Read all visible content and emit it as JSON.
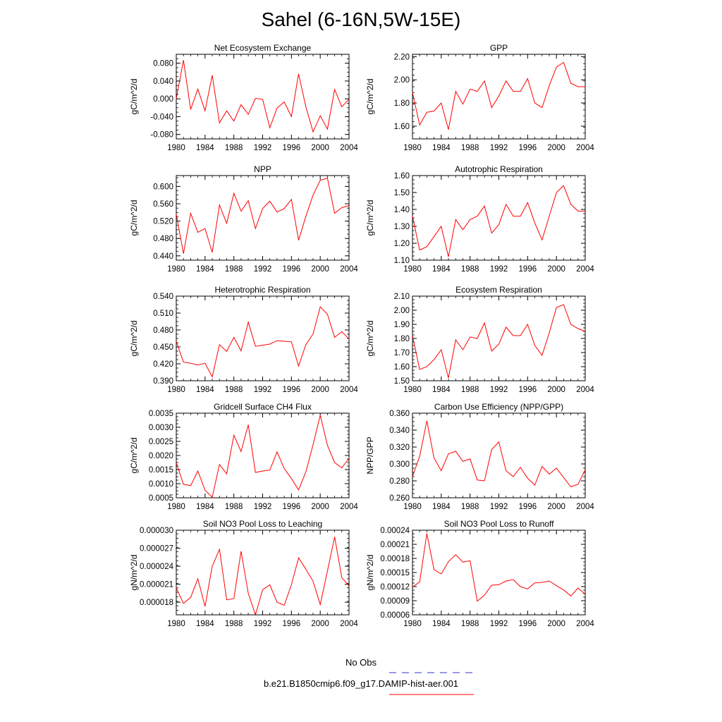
{
  "title": "Sahel (6-16N,5W-15E)",
  "legend": {
    "items": [
      {
        "label": "No Obs",
        "color": "#3333cc",
        "style": "dashed"
      },
      {
        "label": "b.e21.B1850cmip6.f09_g17.DAMIP-hist-aer.001",
        "color": "#ff0000",
        "style": "solid"
      }
    ]
  },
  "chart_data": [
    {
      "type": "line",
      "title": "Net Ecosystem Exchange",
      "ylabel": "gC/m^2/d",
      "xlim": [
        1980,
        2004
      ],
      "xticks": [
        "1980",
        "1984",
        "1988",
        "1992",
        "1996",
        "2000",
        "2004"
      ],
      "ylim": [
        -0.09,
        0.1
      ],
      "yticks": [
        "0.080",
        "0.040",
        "0.000",
        "-0.040",
        "-0.080"
      ],
      "yticks_values": [
        0.08,
        0.04,
        0.0,
        -0.04,
        -0.08
      ],
      "color": "#ff0000",
      "x": [
        1980,
        1981,
        1982,
        1983,
        1984,
        1985,
        1986,
        1987,
        1988,
        1989,
        1990,
        1991,
        1992,
        1993,
        1994,
        1995,
        1996,
        1997,
        1998,
        1999,
        2000,
        2001,
        2002,
        2003,
        2004
      ],
      "values": [
        0.0,
        0.087,
        -0.024,
        0.022,
        -0.027,
        0.053,
        -0.054,
        -0.027,
        -0.05,
        -0.013,
        -0.035,
        0.001,
        -0.001,
        -0.065,
        -0.021,
        -0.007,
        -0.04,
        0.056,
        -0.018,
        -0.074,
        -0.038,
        -0.068,
        0.021,
        -0.018,
        -0.001
      ]
    },
    {
      "type": "line",
      "title": "GPP",
      "ylabel": "gC/m^2/d",
      "xlim": [
        1980,
        2004
      ],
      "xticks": [
        "1980",
        "1984",
        "1988",
        "1992",
        "1996",
        "2000",
        "2004"
      ],
      "ylim": [
        1.49,
        2.22
      ],
      "yticks": [
        "2.20",
        "2.00",
        "1.80",
        "1.60"
      ],
      "yticks_values": [
        2.2,
        2.0,
        1.8,
        1.6
      ],
      "color": "#ff0000",
      "x": [
        1980,
        1981,
        1982,
        1983,
        1984,
        1985,
        1986,
        1987,
        1988,
        1989,
        1990,
        1991,
        1992,
        1993,
        1994,
        1995,
        1996,
        1997,
        1998,
        1999,
        2000,
        2001,
        2002,
        2003,
        2004
      ],
      "values": [
        1.89,
        1.61,
        1.72,
        1.73,
        1.8,
        1.57,
        1.9,
        1.79,
        1.92,
        1.9,
        1.99,
        1.76,
        1.86,
        1.99,
        1.9,
        1.9,
        2.01,
        1.8,
        1.76,
        1.95,
        2.11,
        2.15,
        1.97,
        1.94,
        1.94
      ]
    },
    {
      "type": "line",
      "title": "NPP",
      "ylabel": "gC/m^2/d",
      "xlim": [
        1980,
        2004
      ],
      "xticks": [
        "1980",
        "1984",
        "1988",
        "1992",
        "1996",
        "2000",
        "2004"
      ],
      "ylim": [
        0.43,
        0.625
      ],
      "yticks": [
        "0.600",
        "0.560",
        "0.520",
        "0.480",
        "0.440"
      ],
      "yticks_values": [
        0.6,
        0.56,
        0.52,
        0.48,
        0.44
      ],
      "color": "#ff0000",
      "x": [
        1980,
        1981,
        1982,
        1983,
        1984,
        1985,
        1986,
        1987,
        1988,
        1989,
        1990,
        1991,
        1992,
        1993,
        1994,
        1995,
        1996,
        1997,
        1998,
        1999,
        2000,
        2001,
        2002,
        2003,
        2004
      ],
      "values": [
        0.536,
        0.445,
        0.538,
        0.494,
        0.503,
        0.448,
        0.557,
        0.515,
        0.584,
        0.543,
        0.567,
        0.503,
        0.549,
        0.566,
        0.541,
        0.549,
        0.57,
        0.476,
        0.531,
        0.58,
        0.614,
        0.619,
        0.538,
        0.551,
        0.556
      ]
    },
    {
      "type": "line",
      "title": "Autotrophic Respiration",
      "ylabel": "gC/m^2/d",
      "xlim": [
        1980,
        2004
      ],
      "xticks": [
        "1980",
        "1984",
        "1988",
        "1992",
        "1996",
        "2000",
        "2004"
      ],
      "ylim": [
        1.1,
        1.6
      ],
      "yticks": [
        "1.60",
        "1.50",
        "1.40",
        "1.30",
        "1.20",
        "1.10"
      ],
      "yticks_values": [
        1.6,
        1.5,
        1.4,
        1.3,
        1.2,
        1.1
      ],
      "color": "#ff0000",
      "x": [
        1980,
        1981,
        1982,
        1983,
        1984,
        1985,
        1986,
        1987,
        1988,
        1989,
        1990,
        1991,
        1992,
        1993,
        1994,
        1995,
        1996,
        1997,
        1998,
        1999,
        2000,
        2001,
        2002,
        2003,
        2004
      ],
      "values": [
        1.36,
        1.16,
        1.18,
        1.24,
        1.3,
        1.12,
        1.34,
        1.28,
        1.34,
        1.36,
        1.42,
        1.26,
        1.31,
        1.43,
        1.36,
        1.36,
        1.44,
        1.32,
        1.22,
        1.36,
        1.5,
        1.54,
        1.43,
        1.39,
        1.39
      ]
    },
    {
      "type": "line",
      "title": "Heterotrophic Respiration",
      "ylabel": "gC/m^2/d",
      "xlim": [
        1980,
        2004
      ],
      "xticks": [
        "1980",
        "1984",
        "1988",
        "1992",
        "1996",
        "2000",
        "2004"
      ],
      "ylim": [
        0.39,
        0.54
      ],
      "yticks": [
        "0.540",
        "0.510",
        "0.480",
        "0.450",
        "0.420",
        "0.390"
      ],
      "yticks_values": [
        0.54,
        0.51,
        0.48,
        0.45,
        0.42,
        0.39
      ],
      "color": "#ff0000",
      "x": [
        1980,
        1981,
        1982,
        1983,
        1984,
        1985,
        1986,
        1987,
        1988,
        1989,
        1990,
        1991,
        1992,
        1993,
        1994,
        1995,
        1996,
        1997,
        1998,
        1999,
        2000,
        2001,
        2002,
        2003,
        2004
      ],
      "values": [
        0.46,
        0.423,
        0.421,
        0.418,
        0.421,
        0.397,
        0.454,
        0.442,
        0.467,
        0.443,
        0.494,
        0.451,
        0.453,
        0.455,
        0.461,
        0.46,
        0.459,
        0.416,
        0.454,
        0.473,
        0.521,
        0.508,
        0.467,
        0.477,
        0.464
      ]
    },
    {
      "type": "line",
      "title": "Ecosystem Respiration",
      "ylabel": "gC/m^2/d",
      "xlim": [
        1980,
        2004
      ],
      "xticks": [
        "1980",
        "1984",
        "1988",
        "1992",
        "1996",
        "2000",
        "2004"
      ],
      "ylim": [
        1.5,
        2.1
      ],
      "yticks": [
        "2.10",
        "2.00",
        "1.90",
        "1.80",
        "1.70",
        "1.60",
        "1.50"
      ],
      "yticks_values": [
        2.1,
        2.0,
        1.9,
        1.8,
        1.7,
        1.6,
        1.5
      ],
      "color": "#ff0000",
      "x": [
        1980,
        1981,
        1982,
        1983,
        1984,
        1985,
        1986,
        1987,
        1988,
        1989,
        1990,
        1991,
        1992,
        1993,
        1994,
        1995,
        1996,
        1997,
        1998,
        1999,
        2000,
        2001,
        2002,
        2003,
        2004
      ],
      "values": [
        1.82,
        1.58,
        1.6,
        1.65,
        1.72,
        1.52,
        1.79,
        1.72,
        1.81,
        1.8,
        1.91,
        1.71,
        1.76,
        1.88,
        1.82,
        1.82,
        1.9,
        1.75,
        1.68,
        1.84,
        2.02,
        2.04,
        1.9,
        1.87,
        1.85
      ]
    },
    {
      "type": "line",
      "title": "Gridcell Surface CH4 Flux",
      "ylabel": "gC/m^2/d",
      "xlim": [
        1980,
        2004
      ],
      "xticks": [
        "1980",
        "1984",
        "1988",
        "1992",
        "1996",
        "2000",
        "2004"
      ],
      "ylim": [
        0.0005,
        0.0035
      ],
      "yticks": [
        "0.0035",
        "0.0030",
        "0.0025",
        "0.0020",
        "0.0015",
        "0.0010",
        "0.0005"
      ],
      "yticks_values": [
        0.0035,
        0.003,
        0.0025,
        0.002,
        0.0015,
        0.001,
        0.0005
      ],
      "color": "#ff0000",
      "x": [
        1980,
        1981,
        1982,
        1983,
        1984,
        1985,
        1986,
        1987,
        1988,
        1989,
        1990,
        1991,
        1992,
        1993,
        1994,
        1995,
        1996,
        1997,
        1998,
        1999,
        2000,
        2001,
        2002,
        2003,
        2004
      ],
      "values": [
        0.00174,
        0.00098,
        0.00093,
        0.00145,
        0.00077,
        0.00052,
        0.00168,
        0.00135,
        0.00272,
        0.00214,
        0.00309,
        0.0014,
        0.00145,
        0.00148,
        0.00213,
        0.00154,
        0.00118,
        0.00078,
        0.00142,
        0.00238,
        0.00343,
        0.00236,
        0.00175,
        0.00156,
        0.0019
      ]
    },
    {
      "type": "line",
      "title": "Carbon Use Efficiency (NPP/GPP)",
      "ylabel": "NPP/GPP",
      "xlim": [
        1980,
        2004
      ],
      "xticks": [
        "1980",
        "1984",
        "1988",
        "1992",
        "1996",
        "2000",
        "2004"
      ],
      "ylim": [
        0.26,
        0.36
      ],
      "yticks": [
        "0.360",
        "0.340",
        "0.320",
        "0.300",
        "0.280",
        "0.260"
      ],
      "yticks_values": [
        0.36,
        0.34,
        0.32,
        0.3,
        0.28,
        0.26
      ],
      "color": "#ff0000",
      "x": [
        1980,
        1981,
        1982,
        1983,
        1984,
        1985,
        1986,
        1987,
        1988,
        1989,
        1990,
        1991,
        1992,
        1993,
        1994,
        1995,
        1996,
        1997,
        1998,
        1999,
        2000,
        2001,
        2002,
        2003,
        2004
      ],
      "values": [
        0.285,
        0.309,
        0.351,
        0.307,
        0.292,
        0.312,
        0.315,
        0.303,
        0.306,
        0.281,
        0.28,
        0.317,
        0.326,
        0.292,
        0.285,
        0.296,
        0.283,
        0.275,
        0.297,
        0.288,
        0.295,
        0.284,
        0.273,
        0.276,
        0.293
      ]
    },
    {
      "type": "line",
      "title": "Soil NO3 Pool Loss to Leaching",
      "ylabel": "gN/m^2/d",
      "xlim": [
        1980,
        2004
      ],
      "xticks": [
        "1980",
        "1984",
        "1988",
        "1992",
        "1996",
        "2000",
        "2004"
      ],
      "ylim": [
        1.59e-05,
        3e-05
      ],
      "yticks": [
        "0.000030",
        "0.000027",
        "0.000024",
        "0.000021",
        "0.000018"
      ],
      "yticks_values": [
        3e-05,
        2.7e-05,
        2.4e-05,
        2.1e-05,
        1.8e-05
      ],
      "color": "#ff0000",
      "x": [
        1980,
        1981,
        1982,
        1983,
        1984,
        1985,
        1986,
        1987,
        1988,
        1989,
        1990,
        1991,
        1992,
        1993,
        1994,
        1995,
        1996,
        1997,
        1998,
        1999,
        2000,
        2001,
        2002,
        2003,
        2004
      ],
      "values": [
        2.04e-05,
        1.78e-05,
        1.88e-05,
        2.19e-05,
        1.73e-05,
        2.4e-05,
        2.68e-05,
        1.84e-05,
        1.86e-05,
        2.65e-05,
        1.95e-05,
        1.59e-05,
        2.01e-05,
        2.09e-05,
        1.8e-05,
        1.75e-05,
        2.09e-05,
        2.54e-05,
        2.35e-05,
        2.15e-05,
        1.76e-05,
        2.32e-05,
        2.89e-05,
        2.21e-05,
        2.07e-05
      ]
    },
    {
      "type": "line",
      "title": "Soil NO3 Pool Loss to Runoff",
      "ylabel": "gN/m^2/d",
      "xlim": [
        1980,
        2004
      ],
      "xticks": [
        "1980",
        "1984",
        "1988",
        "1992",
        "1996",
        "2000",
        "2004"
      ],
      "ylim": [
        6e-05,
        0.00024
      ],
      "yticks": [
        "0.00024",
        "0.00021",
        "0.00018",
        "0.00015",
        "0.00012",
        "0.00009",
        "0.00006"
      ],
      "yticks_values": [
        0.00024,
        0.00021,
        0.00018,
        0.00015,
        0.00012,
        9e-05,
        6e-05
      ],
      "color": "#ff0000",
      "x": [
        1980,
        1981,
        1982,
        1983,
        1984,
        1985,
        1986,
        1987,
        1988,
        1989,
        1990,
        1991,
        1992,
        1993,
        1994,
        1995,
        1996,
        1997,
        1998,
        1999,
        2000,
        2001,
        2002,
        2003,
        2004
      ],
      "values": [
        0.000119,
        0.00013,
        0.000233,
        0.000156,
        0.000147,
        0.000173,
        0.000188,
        0.000172,
        0.000175,
        8.9e-05,
        0.000102,
        0.000123,
        0.000124,
        0.000132,
        0.000135,
        0.00012,
        0.000115,
        0.000128,
        0.000129,
        0.000132,
        0.000122,
        0.000113,
        0.0001,
        0.000117,
        0.000104
      ]
    }
  ]
}
